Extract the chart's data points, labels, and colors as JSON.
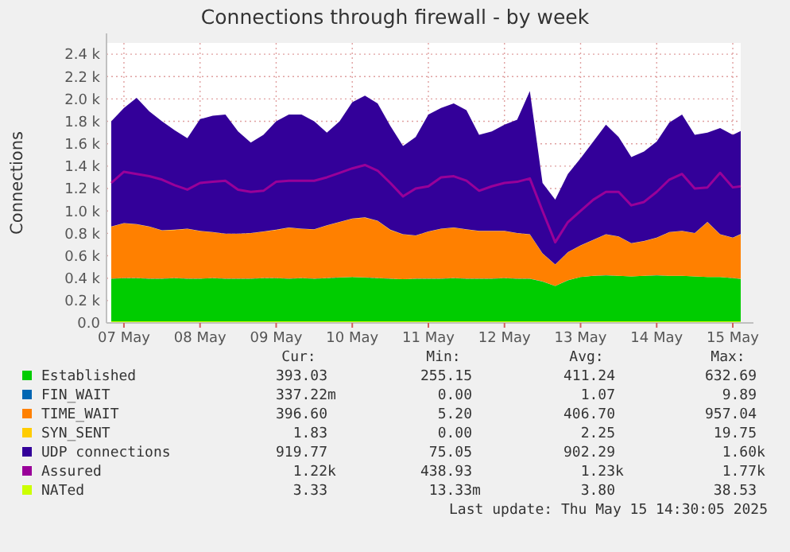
{
  "chart_data": {
    "type": "area",
    "title": "Connections through firewall - by week",
    "ylabel": "Connections",
    "stacked": true,
    "grid": true,
    "legend": "bottom",
    "xlim": [
      "2025-05-07T06:30",
      "2025-05-15T14:30"
    ],
    "xticks": [
      {
        "value": "2025-05-07T12:00",
        "label": "07 May"
      },
      {
        "value": "2025-05-08T12:00",
        "label": "08 May"
      },
      {
        "value": "2025-05-09T12:00",
        "label": "09 May"
      },
      {
        "value": "2025-05-10T12:00",
        "label": "10 May"
      },
      {
        "value": "2025-05-11T12:00",
        "label": "11 May"
      },
      {
        "value": "2025-05-12T12:00",
        "label": "12 May"
      },
      {
        "value": "2025-05-13T12:00",
        "label": "13 May"
      },
      {
        "value": "2025-05-14T12:00",
        "label": "14 May"
      },
      {
        "value": "2025-05-15T12:00",
        "label": "15 May"
      }
    ],
    "ylim": [
      0,
      2500
    ],
    "yticks": [
      {
        "value": 0,
        "label": "0.0"
      },
      {
        "value": 200,
        "label": "0.2 k"
      },
      {
        "value": 400,
        "label": "0.4 k"
      },
      {
        "value": 600,
        "label": "0.6 k"
      },
      {
        "value": 800,
        "label": "0.8 k"
      },
      {
        "value": 1000,
        "label": "1.0 k"
      },
      {
        "value": 1200,
        "label": "1.2 k"
      },
      {
        "value": 1400,
        "label": "1.4 k"
      },
      {
        "value": 1600,
        "label": "1.6 k"
      },
      {
        "value": 1800,
        "label": "1.8 k"
      },
      {
        "value": 2000,
        "label": "2.0 k"
      },
      {
        "value": 2200,
        "label": "2.2 k"
      },
      {
        "value": 2400,
        "label": "2.4 k"
      }
    ],
    "x": [
      "2025-05-07T08:00",
      "2025-05-07T12:00",
      "2025-05-07T16:00",
      "2025-05-07T20:00",
      "2025-05-08T00:00",
      "2025-05-08T04:00",
      "2025-05-08T08:00",
      "2025-05-08T12:00",
      "2025-05-08T16:00",
      "2025-05-08T20:00",
      "2025-05-09T00:00",
      "2025-05-09T04:00",
      "2025-05-09T08:00",
      "2025-05-09T12:00",
      "2025-05-09T16:00",
      "2025-05-09T20:00",
      "2025-05-10T00:00",
      "2025-05-10T04:00",
      "2025-05-10T08:00",
      "2025-05-10T12:00",
      "2025-05-10T16:00",
      "2025-05-10T20:00",
      "2025-05-11T00:00",
      "2025-05-11T04:00",
      "2025-05-11T08:00",
      "2025-05-11T12:00",
      "2025-05-11T16:00",
      "2025-05-11T20:00",
      "2025-05-12T00:00",
      "2025-05-12T04:00",
      "2025-05-12T08:00",
      "2025-05-12T12:00",
      "2025-05-12T16:00",
      "2025-05-12T20:00",
      "2025-05-13T00:00",
      "2025-05-13T04:00",
      "2025-05-13T08:00",
      "2025-05-13T12:00",
      "2025-05-13T16:00",
      "2025-05-13T20:00",
      "2025-05-14T00:00",
      "2025-05-14T04:00",
      "2025-05-14T08:00",
      "2025-05-14T12:00",
      "2025-05-14T16:00",
      "2025-05-14T20:00",
      "2025-05-15T00:00",
      "2025-05-15T04:00",
      "2025-05-15T08:00",
      "2025-05-15T12:00",
      "2025-05-15T14:30"
    ],
    "series": [
      {
        "name": "Established",
        "type": "area",
        "color": "#00cc00",
        "values": [
          395,
          400,
          400,
          395,
          395,
          400,
          395,
          395,
          400,
          395,
          395,
          395,
          400,
          400,
          395,
          400,
          395,
          400,
          405,
          410,
          405,
          400,
          395,
          390,
          395,
          395,
          395,
          400,
          395,
          395,
          395,
          400,
          395,
          395,
          370,
          330,
          380,
          410,
          420,
          425,
          420,
          415,
          420,
          425,
          420,
          420,
          415,
          410,
          410,
          400,
          393
        ]
      },
      {
        "name": "FIN_WAIT",
        "type": "area",
        "color": "#0066b3",
        "values": [
          1,
          1,
          1,
          1,
          1,
          1,
          1,
          1,
          1,
          1,
          1,
          1,
          1,
          1,
          1,
          1,
          1,
          1,
          1,
          1,
          1,
          1,
          1,
          1,
          1,
          1,
          1,
          1,
          1,
          1,
          1,
          1,
          1,
          1,
          1,
          1,
          1,
          1,
          1,
          1,
          1,
          1,
          1,
          1,
          1,
          1,
          1,
          1,
          1,
          1,
          1
        ]
      },
      {
        "name": "TIME_WAIT",
        "type": "area",
        "color": "#ff8000",
        "values": [
          464,
          489,
          479,
          464,
          429,
          429,
          444,
          424,
          409,
          399,
          399,
          404,
          414,
          429,
          454,
          439,
          439,
          469,
          494,
          519,
          534,
          509,
          434,
          399,
          384,
          419,
          444,
          449,
          439,
          424,
          424,
          419,
          404,
          394,
          249,
          189,
          249,
          279,
          319,
          364,
          349,
          294,
          309,
          334,
          389,
          399,
          384,
          489,
          379,
          359,
          397
        ]
      },
      {
        "name": "SYN_SENT",
        "type": "area",
        "color": "#ffcc00",
        "values": [
          2,
          2,
          2,
          2,
          2,
          2,
          2,
          2,
          2,
          2,
          2,
          2,
          2,
          2,
          2,
          2,
          2,
          2,
          2,
          2,
          2,
          2,
          2,
          2,
          2,
          2,
          2,
          2,
          2,
          2,
          2,
          2,
          2,
          2,
          2,
          2,
          2,
          2,
          2,
          2,
          2,
          2,
          2,
          2,
          2,
          2,
          2,
          2,
          2,
          2,
          2
        ]
      },
      {
        "name": "UDP connections",
        "type": "area",
        "color": "#330099",
        "values": [
          938,
          1028,
          1128,
          1028,
          973,
          888,
          808,
          998,
          1038,
          1063,
          913,
          808,
          863,
          968,
          1008,
          1018,
          963,
          828,
          898,
          1038,
          1088,
          1048,
          928,
          788,
          878,
          1043,
          1078,
          1108,
          1063,
          858,
          888,
          948,
          1013,
          1278,
          628,
          578,
          698,
          778,
          878,
          978,
          888,
          768,
          798,
          858,
          978,
          1038,
          878,
          798,
          948,
          918,
          920
        ]
      },
      {
        "name": "Assured",
        "type": "line",
        "color": "#990099",
        "values": [
          1250,
          1350,
          1330,
          1310,
          1280,
          1230,
          1190,
          1250,
          1260,
          1270,
          1190,
          1170,
          1180,
          1260,
          1270,
          1270,
          1270,
          1300,
          1340,
          1380,
          1410,
          1360,
          1250,
          1130,
          1200,
          1220,
          1300,
          1310,
          1270,
          1180,
          1220,
          1250,
          1260,
          1290,
          1000,
          720,
          900,
          1000,
          1100,
          1170,
          1170,
          1050,
          1080,
          1170,
          1280,
          1330,
          1200,
          1210,
          1340,
          1210,
          1220
        ]
      },
      {
        "name": "NATed",
        "type": "line",
        "color": "#ccff00",
        "values": [
          4,
          4,
          4,
          4,
          4,
          4,
          4,
          4,
          4,
          4,
          4,
          4,
          4,
          4,
          4,
          4,
          4,
          4,
          4,
          4,
          4,
          4,
          4,
          4,
          4,
          4,
          4,
          4,
          4,
          4,
          4,
          4,
          4,
          4,
          4,
          4,
          4,
          4,
          4,
          4,
          4,
          4,
          4,
          4,
          4,
          4,
          4,
          4,
          4,
          4,
          3
        ]
      }
    ],
    "annotations": [
      "Cur:",
      "Min:",
      "Avg:",
      "Max:",
      "393.03",
      "255.15",
      "411.24",
      "632.69",
      "337.22m",
      "0.00",
      "1.07",
      "9.89",
      "396.60",
      "5.20",
      "406.70",
      "957.04",
      "1.83",
      "0.00",
      "2.25",
      "19.75",
      "919.77",
      "75.05",
      "902.29",
      "1.60k",
      "1.22k",
      "438.93",
      "1.23k",
      "1.77k",
      "3.33",
      "13.33m",
      "3.80",
      "38.53",
      "Last update: Thu May 15 14:30:05 2025"
    ]
  }
}
